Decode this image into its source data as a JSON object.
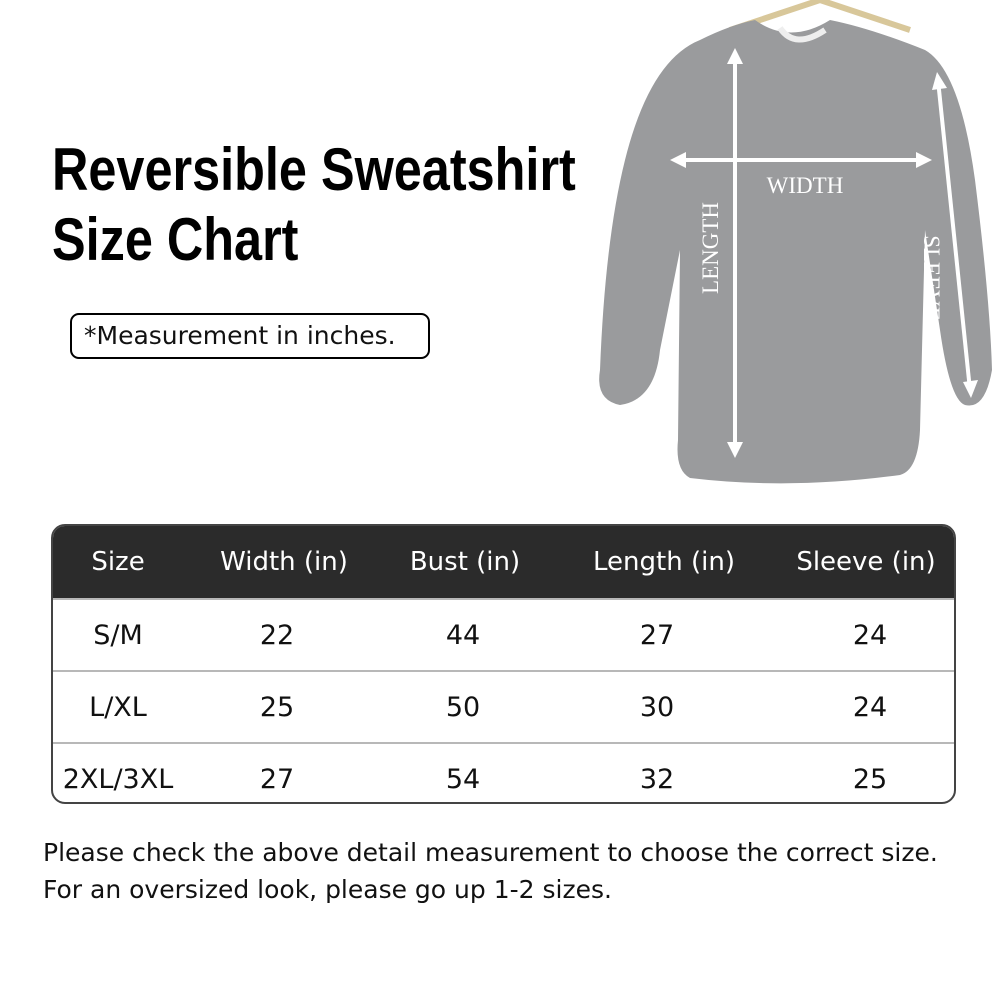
{
  "title": {
    "line1": "Reversible Sweatshirt",
    "line2": "Size Chart"
  },
  "note": "*Measurement in inches.",
  "diagram": {
    "width_label": "WIDTH",
    "length_label": "LENGTH",
    "sleeve_label": "SLEEVE",
    "shirt_color": "#9a9b9d"
  },
  "table": {
    "headers": [
      "Size",
      "Width (in)",
      "Bust (in)",
      "Length (in)",
      "Sleeve (in)"
    ],
    "rows": [
      [
        "S/M",
        "22",
        "44",
        "27",
        "24"
      ],
      [
        "L/XL",
        "25",
        "50",
        "30",
        "24"
      ],
      [
        "2XL/3XL",
        "27",
        "54",
        "32",
        "25"
      ]
    ],
    "header_color": "#2b2b2b"
  },
  "footer": {
    "line1": "Please check the above detail measurement to choose the correct size.",
    "line2": "For an oversized look, please go up 1-2 sizes."
  }
}
